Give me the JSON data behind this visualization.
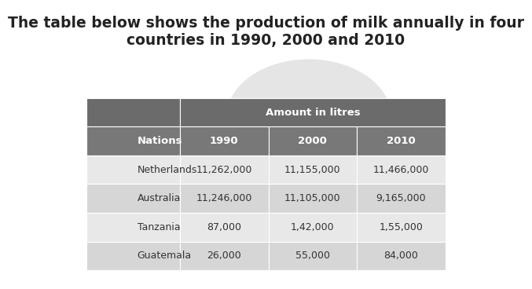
{
  "title": "The table below shows the production of milk annually in four\ncountries in 1990, 2000 and 2010",
  "title_fontsize": 13.5,
  "header1_text": "Amount in litres",
  "header2_texts": [
    "Nations",
    "1990",
    "2000",
    "2010"
  ],
  "rows": [
    [
      "Netherlands",
      "11,262,000",
      "11,155,000",
      "11,466,000"
    ],
    [
      "Australia",
      "11,246,000",
      "11,105,000",
      "9,165,000"
    ],
    [
      "Tanzania",
      "87,000",
      "1,42,000",
      "1,55,000"
    ],
    [
      "Guatemala",
      "26,000",
      "55,000",
      "84,000"
    ]
  ],
  "header_bg": "#6b6b6b",
  "subheader_bg": "#787878",
  "row_bg_odd": "#e8e8e8",
  "row_bg_even": "#d6d6d6",
  "header_text_color": "#ffffff",
  "row_text_color": "#333333",
  "bg_color": "#ffffff",
  "watermark_color": "#e5e5e5"
}
